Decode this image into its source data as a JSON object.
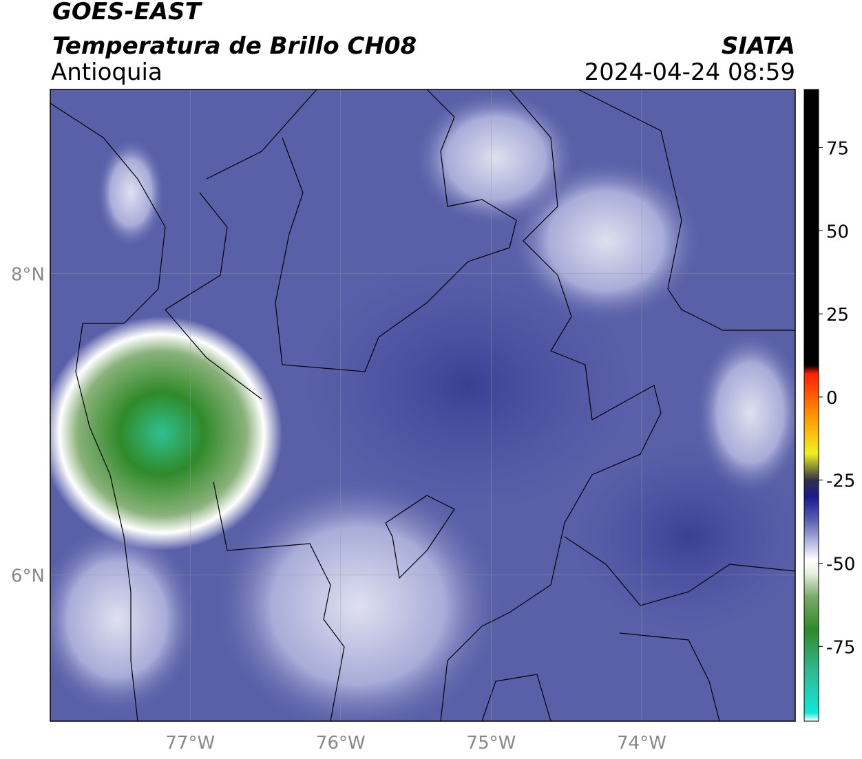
{
  "header": {
    "title": "GOES-EAST",
    "subtitle": "Temperatura de Brillo CH08",
    "region": "Antioquia",
    "source": "SIATA",
    "datetime": "2024-04-24 08:59"
  },
  "map": {
    "xlim": [
      -77.93,
      -72.98
    ],
    "ylim": [
      5.03,
      9.22
    ],
    "xticks": [
      {
        "value": -77,
        "label": "77°W"
      },
      {
        "value": -76,
        "label": "76°W"
      },
      {
        "value": -75,
        "label": "75°W"
      },
      {
        "value": -74,
        "label": "74°W"
      }
    ],
    "yticks": [
      {
        "value": 8,
        "label": "8°N"
      },
      {
        "value": 6,
        "label": "6°N"
      }
    ],
    "grid": true
  },
  "colorbar": {
    "range": [
      -97.5,
      92.5
    ],
    "ticks": [
      75,
      50,
      25,
      0,
      -25,
      -50,
      -75
    ],
    "stops": [
      {
        "value": -97.5,
        "color": "#ffffff"
      },
      {
        "value": -95,
        "color": "#10e8d8"
      },
      {
        "value": -82,
        "color": "#30b890"
      },
      {
        "value": -70,
        "color": "#2f8a2a"
      },
      {
        "value": -60,
        "color": "#7aab6a"
      },
      {
        "value": -53,
        "color": "#e8f0e0"
      },
      {
        "value": -49,
        "color": "#ffffff"
      },
      {
        "value": -44,
        "color": "#b8bce0"
      },
      {
        "value": -37,
        "color": "#5a60b0"
      },
      {
        "value": -30,
        "color": "#1a1a90"
      },
      {
        "value": -25,
        "color": "#303048"
      },
      {
        "value": -17,
        "color": "#f0f020"
      },
      {
        "value": -5,
        "color": "#ff9000"
      },
      {
        "value": 7,
        "color": "#ff2000"
      },
      {
        "value": 9.5,
        "color": "#000000"
      },
      {
        "value": 92.5,
        "color": "#000000"
      }
    ]
  }
}
